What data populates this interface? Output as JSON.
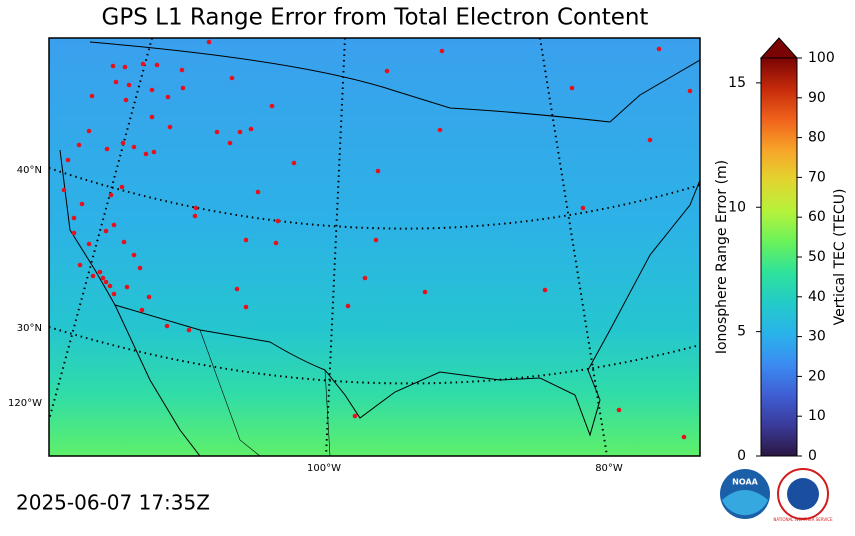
{
  "title": "GPS L1 Range Error from Total Electron Content",
  "timestamp": "2025-06-07 17:35Z",
  "map": {
    "graticule_labels": [
      "40°N",
      "30°N",
      "120°W",
      "100°W",
      "80°W"
    ]
  },
  "colorbar": {
    "label": "Vertical TEC (TECU)",
    "ylim": [
      0,
      100
    ],
    "yticks": [
      0,
      10,
      20,
      30,
      40,
      50,
      60,
      70,
      80,
      90,
      100
    ],
    "y2label": "Ionosphere Range Error (m)",
    "y2lim": [
      0,
      16
    ],
    "y2ticks": [
      0,
      5,
      10,
      15
    ],
    "colors": [
      "#2b1742",
      "#3a3a9a",
      "#3f5fd4",
      "#3b8cf2",
      "#29b3ea",
      "#23cbc8",
      "#2fe29a",
      "#6af25a",
      "#b6f23b",
      "#e2d52f",
      "#f7a429",
      "#f0621c",
      "#c52a0b",
      "#7a0403"
    ]
  },
  "logos": {
    "noaa": "NOAA",
    "nws": "NATIONAL WEATHER SERVICE"
  }
}
